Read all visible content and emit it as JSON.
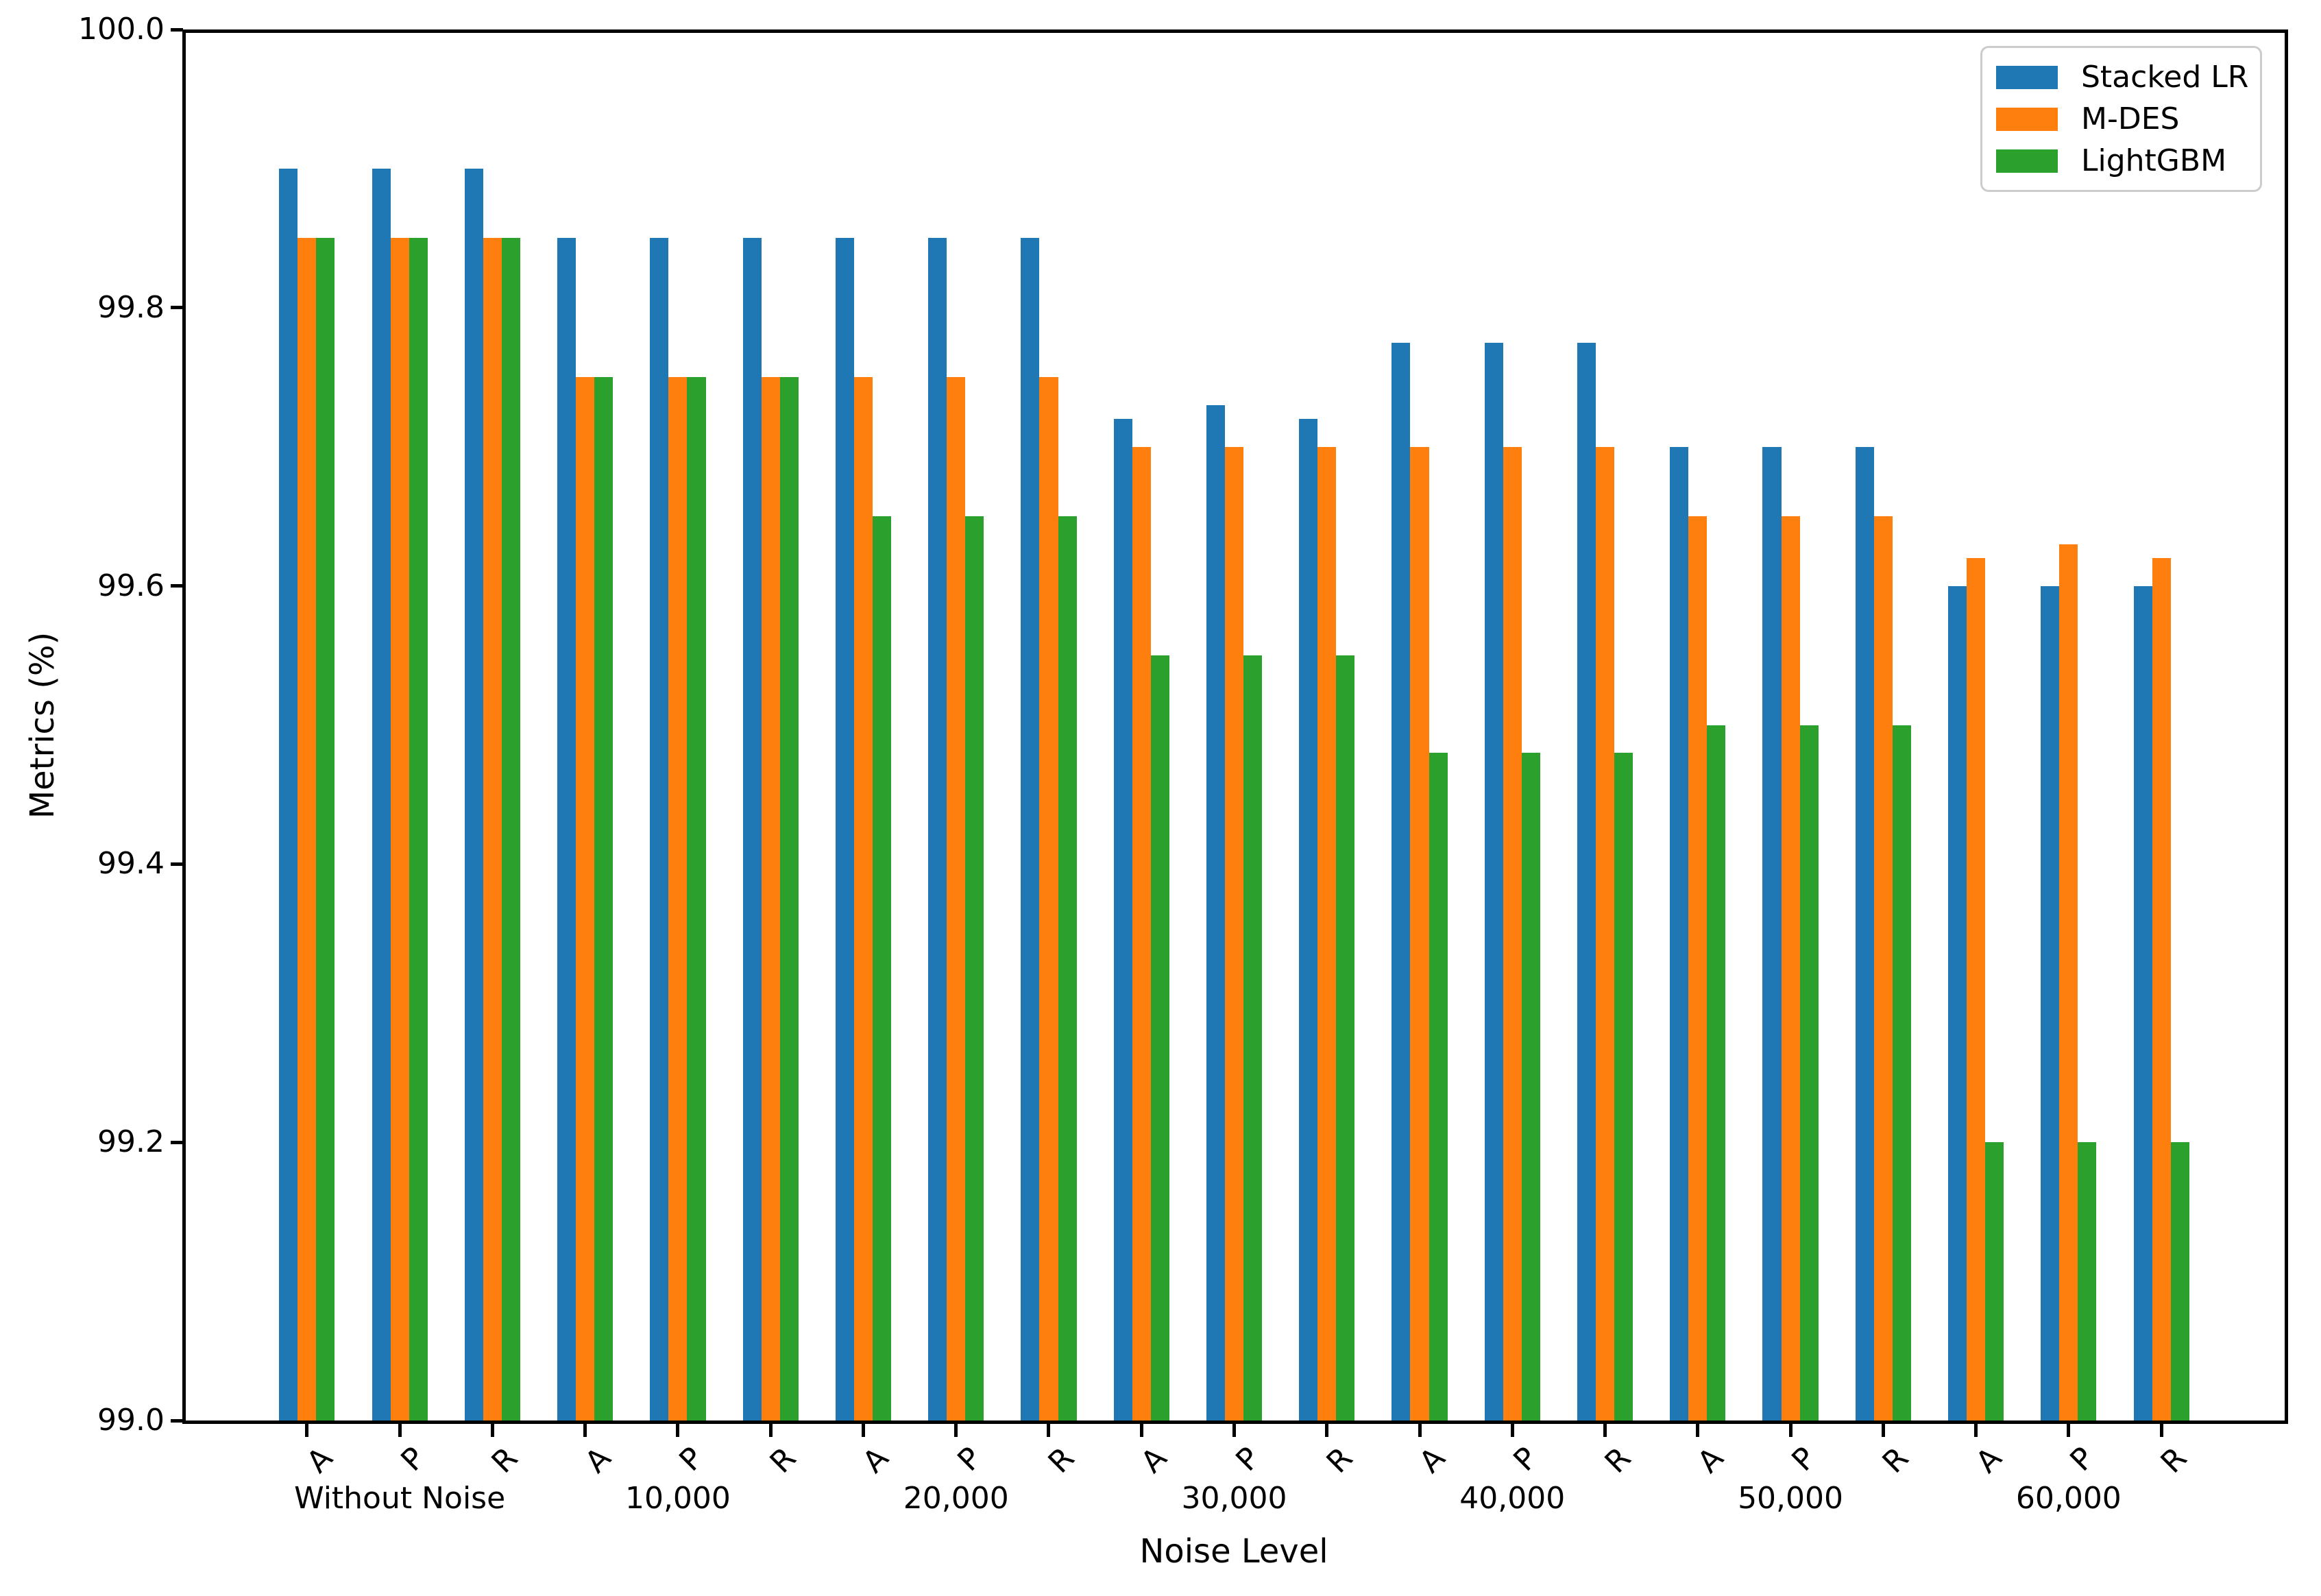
{
  "chart_data": {
    "type": "bar",
    "title": "",
    "xlabel": "Noise Level",
    "ylabel": "Metrics (%)",
    "ylim": [
      99.0,
      100.0
    ],
    "ytick_values": [
      99.0,
      99.2,
      99.4,
      99.6,
      99.8,
      100.0
    ],
    "ytick_labels": [
      "99.0",
      "99.2",
      "99.4",
      "99.6",
      "99.8",
      "100.0"
    ],
    "groups": [
      "Without Noise",
      "10,000",
      "20,000",
      "30,000",
      "40,000",
      "50,000",
      "60,000"
    ],
    "subcategories": [
      "A",
      "P",
      "R"
    ],
    "grid": false,
    "legend_position": "upper right",
    "series": [
      {
        "name": "Stacked LR",
        "color": "#1f77b4",
        "values": [
          99.9,
          99.9,
          99.9,
          99.85,
          99.85,
          99.85,
          99.85,
          99.85,
          99.85,
          99.72,
          99.73,
          99.72,
          99.775,
          99.775,
          99.775,
          99.7,
          99.7,
          99.7,
          99.6,
          99.6,
          99.6
        ]
      },
      {
        "name": "M-DES",
        "color": "#ff7f0e",
        "values": [
          99.85,
          99.85,
          99.85,
          99.75,
          99.75,
          99.75,
          99.75,
          99.75,
          99.75,
          99.7,
          99.7,
          99.7,
          99.7,
          99.7,
          99.7,
          99.65,
          99.65,
          99.65,
          99.62,
          99.63,
          99.62
        ]
      },
      {
        "name": "LightGBM",
        "color": "#2ca02c",
        "values": [
          99.85,
          99.85,
          99.85,
          99.75,
          99.75,
          99.75,
          99.65,
          99.65,
          99.65,
          99.55,
          99.55,
          99.55,
          99.48,
          99.48,
          99.48,
          99.5,
          99.5,
          99.5,
          99.2,
          99.2,
          99.2
        ]
      }
    ]
  }
}
